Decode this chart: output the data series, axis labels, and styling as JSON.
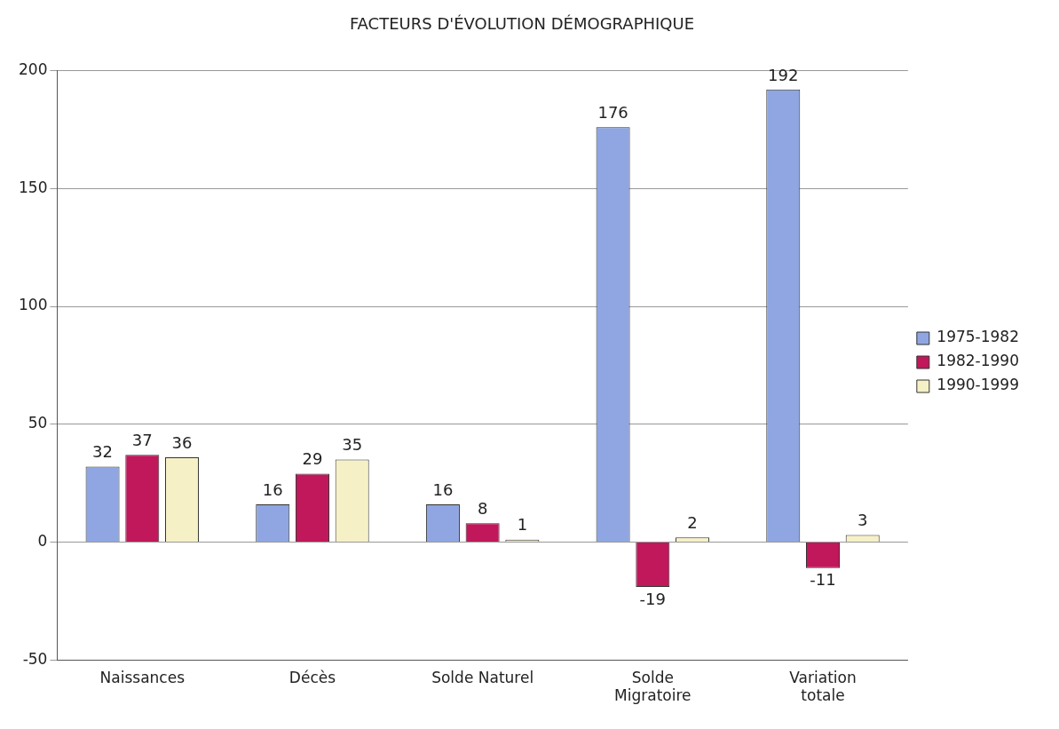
{
  "chart_data": {
    "type": "bar",
    "title": "FACTEURS D'ÉVOLUTION DÉMOGRAPHIQUE",
    "categories": [
      "Naissances",
      "Décès",
      "Solde Naturel",
      "Solde Migratoire",
      "Variation totale"
    ],
    "series": [
      {
        "name": "1975-1982",
        "color": "#8fa6e2",
        "values": [
          32,
          16,
          16,
          176,
          192
        ]
      },
      {
        "name": "1982-1990",
        "color": "#c0185a",
        "values": [
          37,
          29,
          8,
          -19,
          -11
        ]
      },
      {
        "name": "1990-1999",
        "color": "#f6f0c6",
        "values": [
          36,
          35,
          1,
          2,
          3
        ]
      }
    ],
    "ylim": [
      -50,
      200
    ],
    "yticks": [
      -50,
      0,
      50,
      100,
      150,
      200
    ],
    "grid": "y",
    "legend": "right",
    "data_labels": true
  }
}
